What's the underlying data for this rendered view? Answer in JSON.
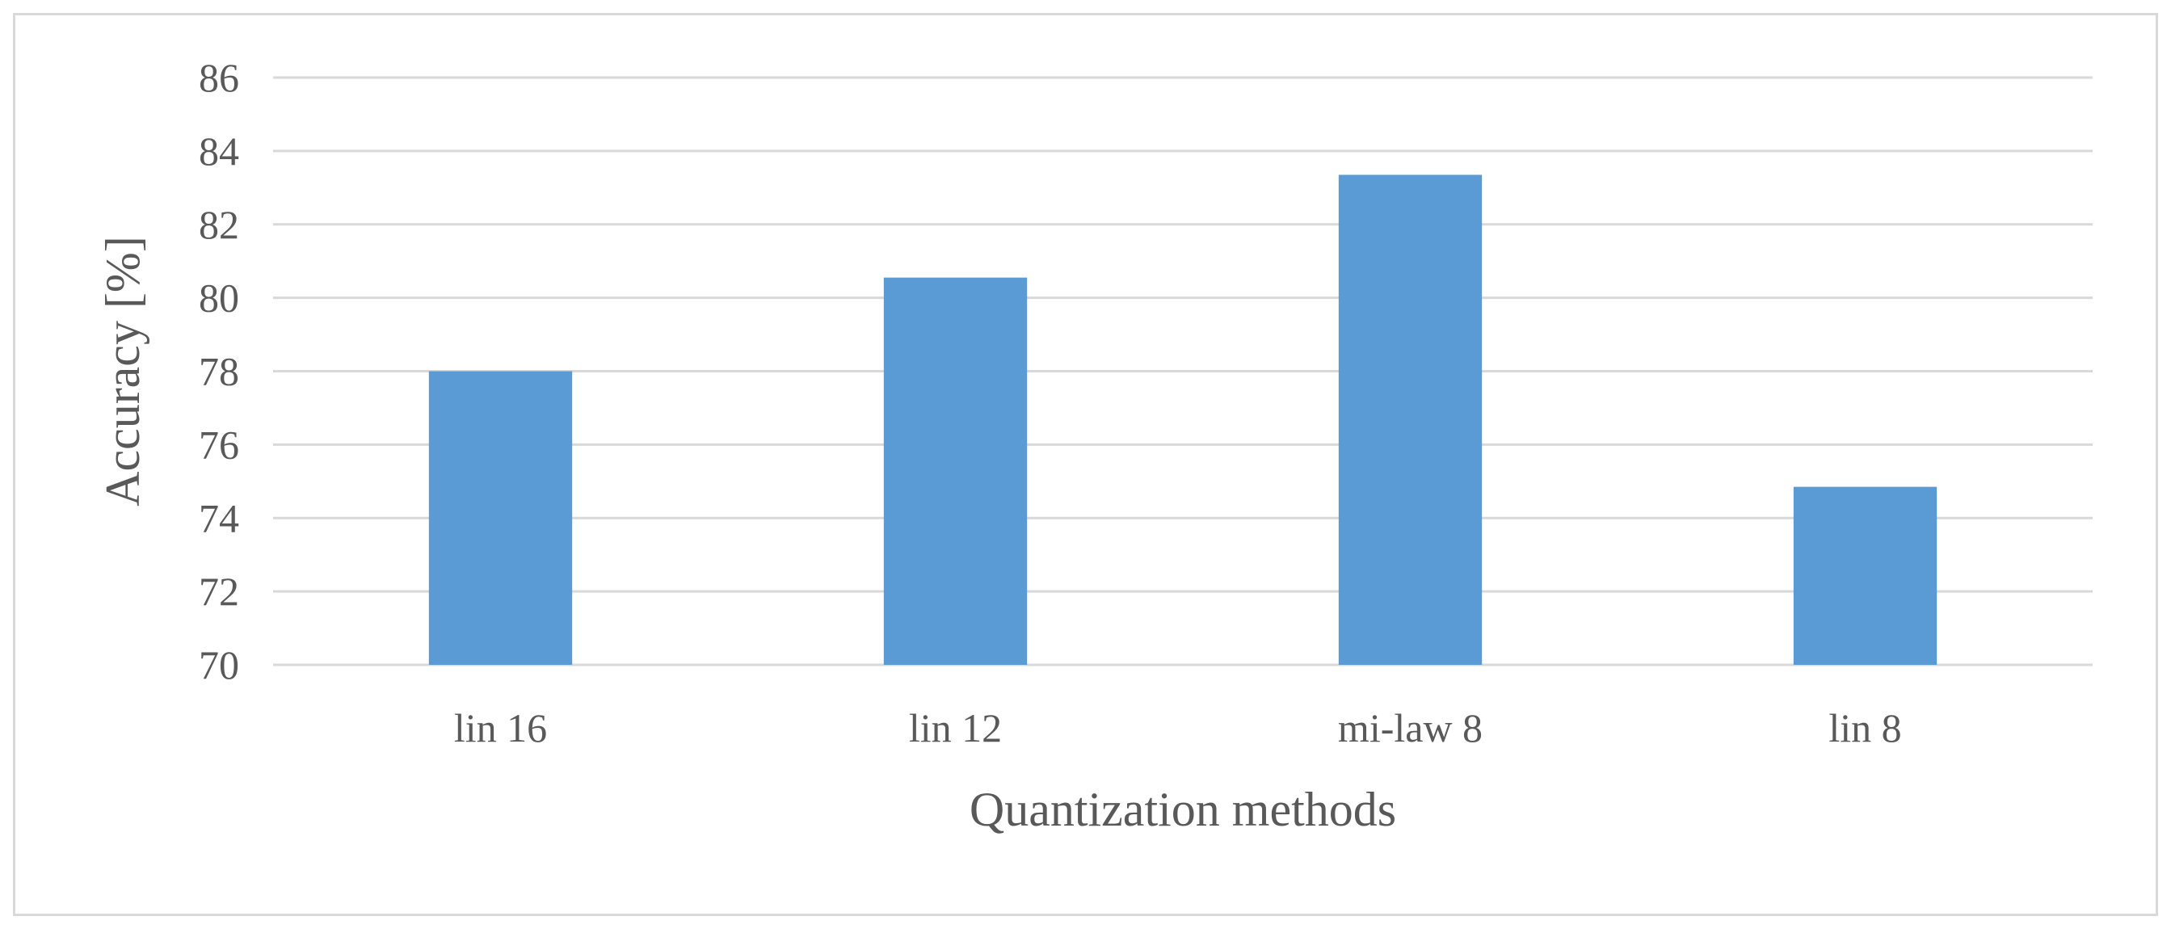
{
  "chart_data": {
    "type": "bar",
    "title": "",
    "xlabel": "Quantization methods",
    "ylabel": "Accuracy [%]",
    "categories": [
      "lin 16",
      "lin 12",
      "mi-law 8",
      "lin 8"
    ],
    "values": [
      78.0,
      80.55,
      83.35,
      74.85
    ],
    "ylim": [
      70,
      86
    ],
    "yticks": [
      70,
      72,
      74,
      76,
      78,
      80,
      82,
      84,
      86
    ],
    "grid": true,
    "legend": "none",
    "colors": {
      "bar": "#5b9bd5",
      "grid": "#d9d9d9",
      "text": "#595959",
      "border": "#d9d9d9"
    }
  }
}
